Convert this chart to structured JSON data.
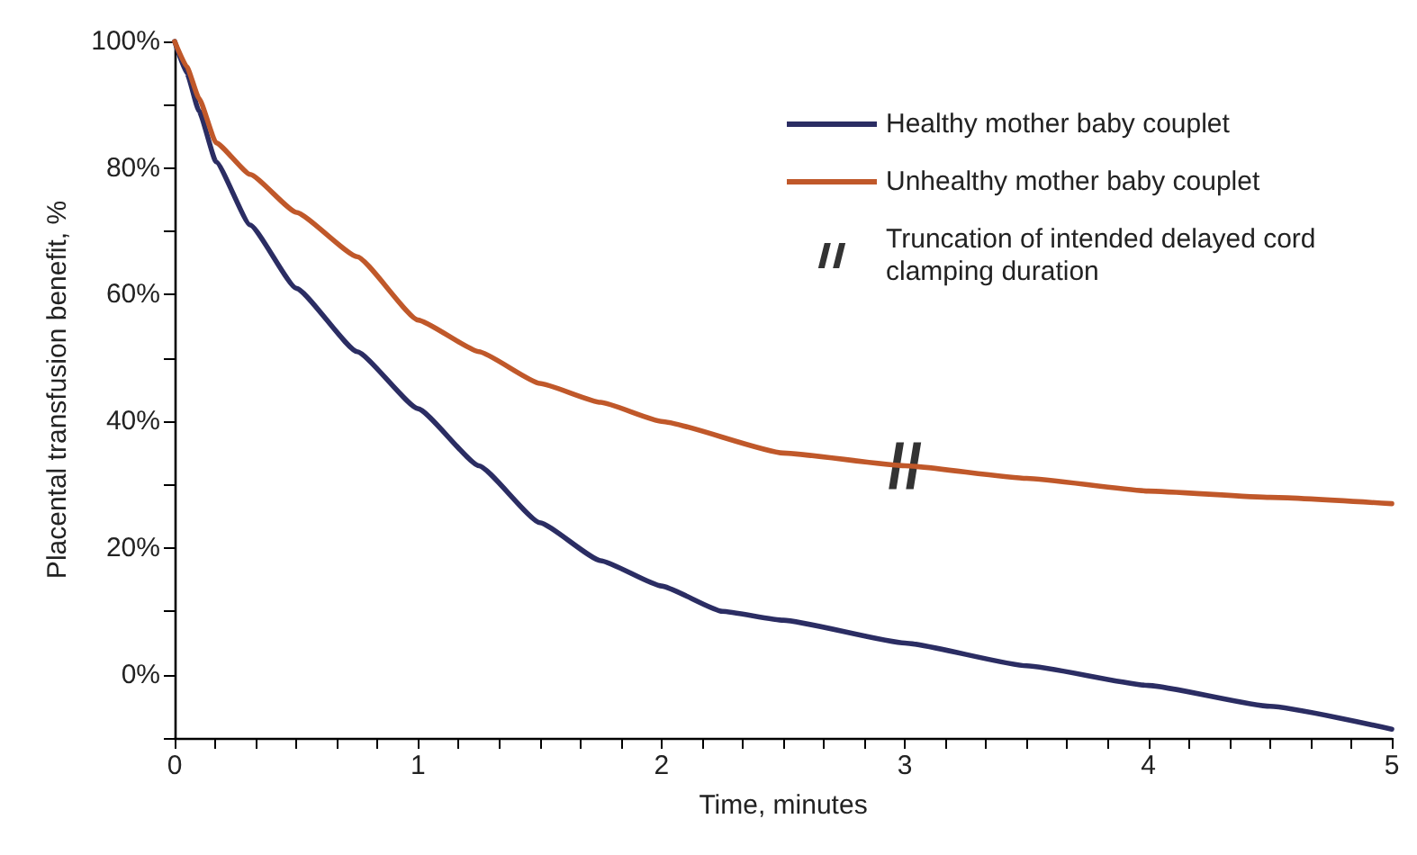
{
  "chart_data": {
    "type": "line",
    "xlabel": "Time, minutes",
    "ylabel": "Placental transfusion benefit, %",
    "legend": "top right",
    "grid": false,
    "marker": "none",
    "line_style": "solid",
    "xlim": [
      0,
      5
    ],
    "ylim": [
      -10,
      100
    ],
    "xticks": [
      0,
      {
        "value": 0.1667,
        "label": null
      },
      {
        "value": 0.3333,
        "label": null
      },
      {
        "value": 0.5,
        "label": null
      },
      {
        "value": 0.6667,
        "label": null
      },
      {
        "value": 0.8333,
        "label": null
      },
      1,
      {
        "value": 1.1667,
        "label": null
      },
      {
        "value": 1.3333,
        "label": null
      },
      {
        "value": 1.5,
        "label": null
      },
      {
        "value": 1.6667,
        "label": null
      },
      {
        "value": 1.8333,
        "label": null
      },
      2,
      {
        "value": 2.1667,
        "label": null
      },
      {
        "value": 2.3333,
        "label": null
      },
      {
        "value": 2.5,
        "label": null
      },
      {
        "value": 2.6667,
        "label": null
      },
      {
        "value": 2.8333,
        "label": null
      },
      3,
      {
        "value": 3.1667,
        "label": null
      },
      {
        "value": 3.3333,
        "label": null
      },
      {
        "value": 3.5,
        "label": null
      },
      {
        "value": 3.6667,
        "label": null
      },
      {
        "value": 3.8333,
        "label": null
      },
      4,
      {
        "value": 4.1667,
        "label": null
      },
      {
        "value": 4.3333,
        "label": null
      },
      {
        "value": 4.5,
        "label": null
      },
      {
        "value": 4.6667,
        "label": null
      },
      {
        "value": 4.8333,
        "label": null
      },
      5
    ],
    "yticks": [
      {
        "value": -10,
        "label": null
      },
      {
        "value": 0,
        "label": "0%"
      },
      {
        "value": 10,
        "label": null
      },
      {
        "value": 20,
        "label": "20%"
      },
      {
        "value": 30,
        "label": null
      },
      {
        "value": 40,
        "label": "40%"
      },
      {
        "value": 50,
        "label": null
      },
      {
        "value": 60,
        "label": "60%"
      },
      {
        "value": 70,
        "label": null
      },
      {
        "value": 80,
        "label": "80%"
      },
      {
        "value": 90,
        "label": null
      },
      {
        "value": 100,
        "label": "100%"
      }
    ],
    "series": [
      {
        "name": "Healthy mother baby couplet",
        "color": "#2b2d63",
        "x": [
          0,
          0.05,
          0.1,
          0.17,
          0.31,
          0.5,
          0.75,
          1,
          1.25,
          1.5,
          1.75,
          2,
          2.25,
          2.5,
          3,
          3.5,
          4,
          4.5,
          5
        ],
        "values": [
          100,
          95,
          89,
          81,
          71,
          61,
          51,
          42,
          33,
          24,
          18,
          14,
          10,
          8.6,
          5,
          1.4,
          -1.7,
          -5,
          -8.6
        ]
      },
      {
        "name": "Unhealthy mother baby couplet",
        "color": "#c0582a",
        "x": [
          0,
          0.05,
          0.1,
          0.17,
          0.31,
          0.5,
          0.75,
          1,
          1.25,
          1.5,
          1.75,
          2,
          2.5,
          3,
          3.5,
          4,
          4.5,
          5
        ],
        "values": [
          100,
          96,
          91,
          84,
          79,
          73,
          66,
          56,
          51,
          46,
          43,
          40,
          35,
          33,
          31,
          29,
          28,
          27
        ]
      },
      {
        "name": "Truncation of intended delayed cord clamping duration",
        "type": "scatter",
        "marker": "cross",
        "color": "#000000",
        "x": [
          3
        ],
        "values": [
          33
        ]
      }
    ]
  }
}
